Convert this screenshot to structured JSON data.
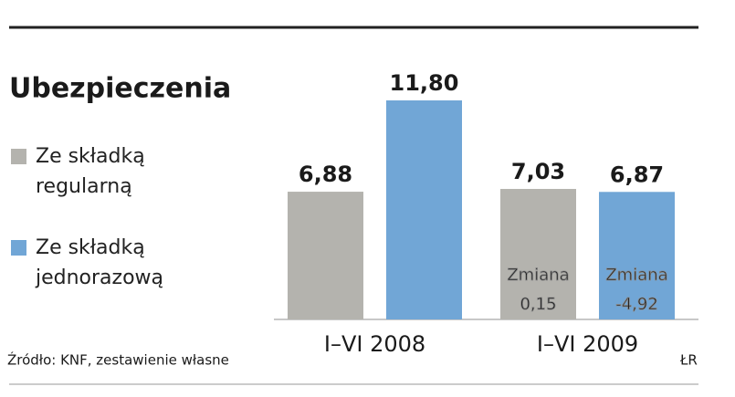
{
  "chart_data": {
    "type": "bar",
    "title": "Ubezpieczenia",
    "categories": [
      "I–VI 2008",
      "I–VI 2009"
    ],
    "series": [
      {
        "name": "Ze składką regularną",
        "color": "#b4b3ae",
        "values": [
          6.88,
          7.03
        ],
        "value_labels": [
          "6,88",
          "7,03"
        ]
      },
      {
        "name": "Ze składką jednorazową",
        "color": "#71a6d6",
        "values": [
          11.8,
          6.87
        ],
        "value_labels": [
          "11,80",
          "6,87"
        ]
      }
    ],
    "annotations": [
      {
        "text": "Zmiana",
        "change": "0,15"
      },
      {
        "text": "Zmiana",
        "change": "-4,92"
      }
    ],
    "source": "Źródło: KNF, zestawienie własne",
    "credit": "ŁR"
  }
}
